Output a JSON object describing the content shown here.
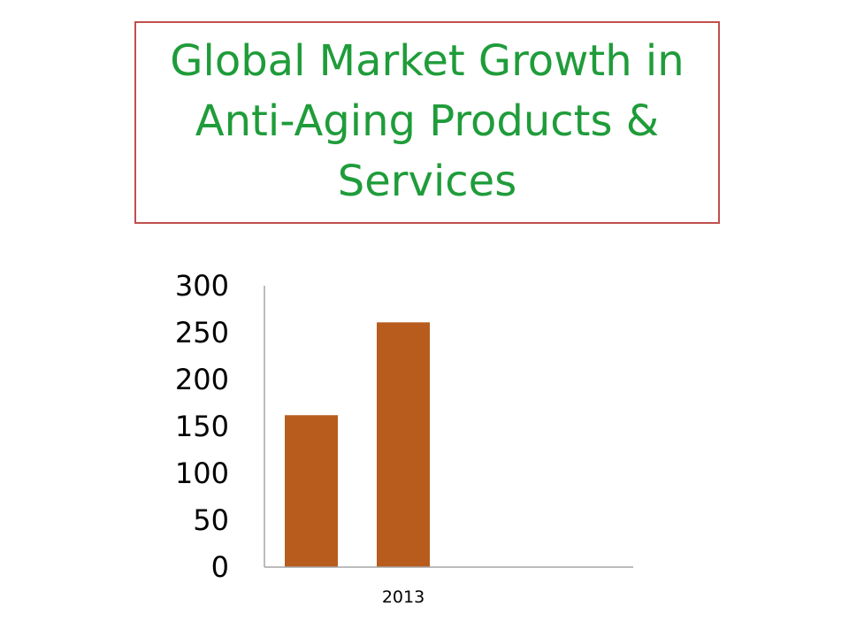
{
  "title": {
    "text": "Global Market Growth in Anti-Aging Products & Services",
    "color": "#1f9c3a",
    "border_color": "#c0504d"
  },
  "chart_data": {
    "type": "bar",
    "title": "Global Market Growth in Anti-Aging Products & Services",
    "xlabel": "",
    "ylabel": "",
    "ylim": [
      0,
      300
    ],
    "yticks": [
      "0",
      "50",
      "100",
      "150",
      "200",
      "250",
      "300"
    ],
    "xtick_label": "2013",
    "values": [
      162,
      261
    ],
    "bar_color": "#b85c1e",
    "axis_color": "#a6a6a6",
    "grid": false,
    "legend": "none"
  }
}
